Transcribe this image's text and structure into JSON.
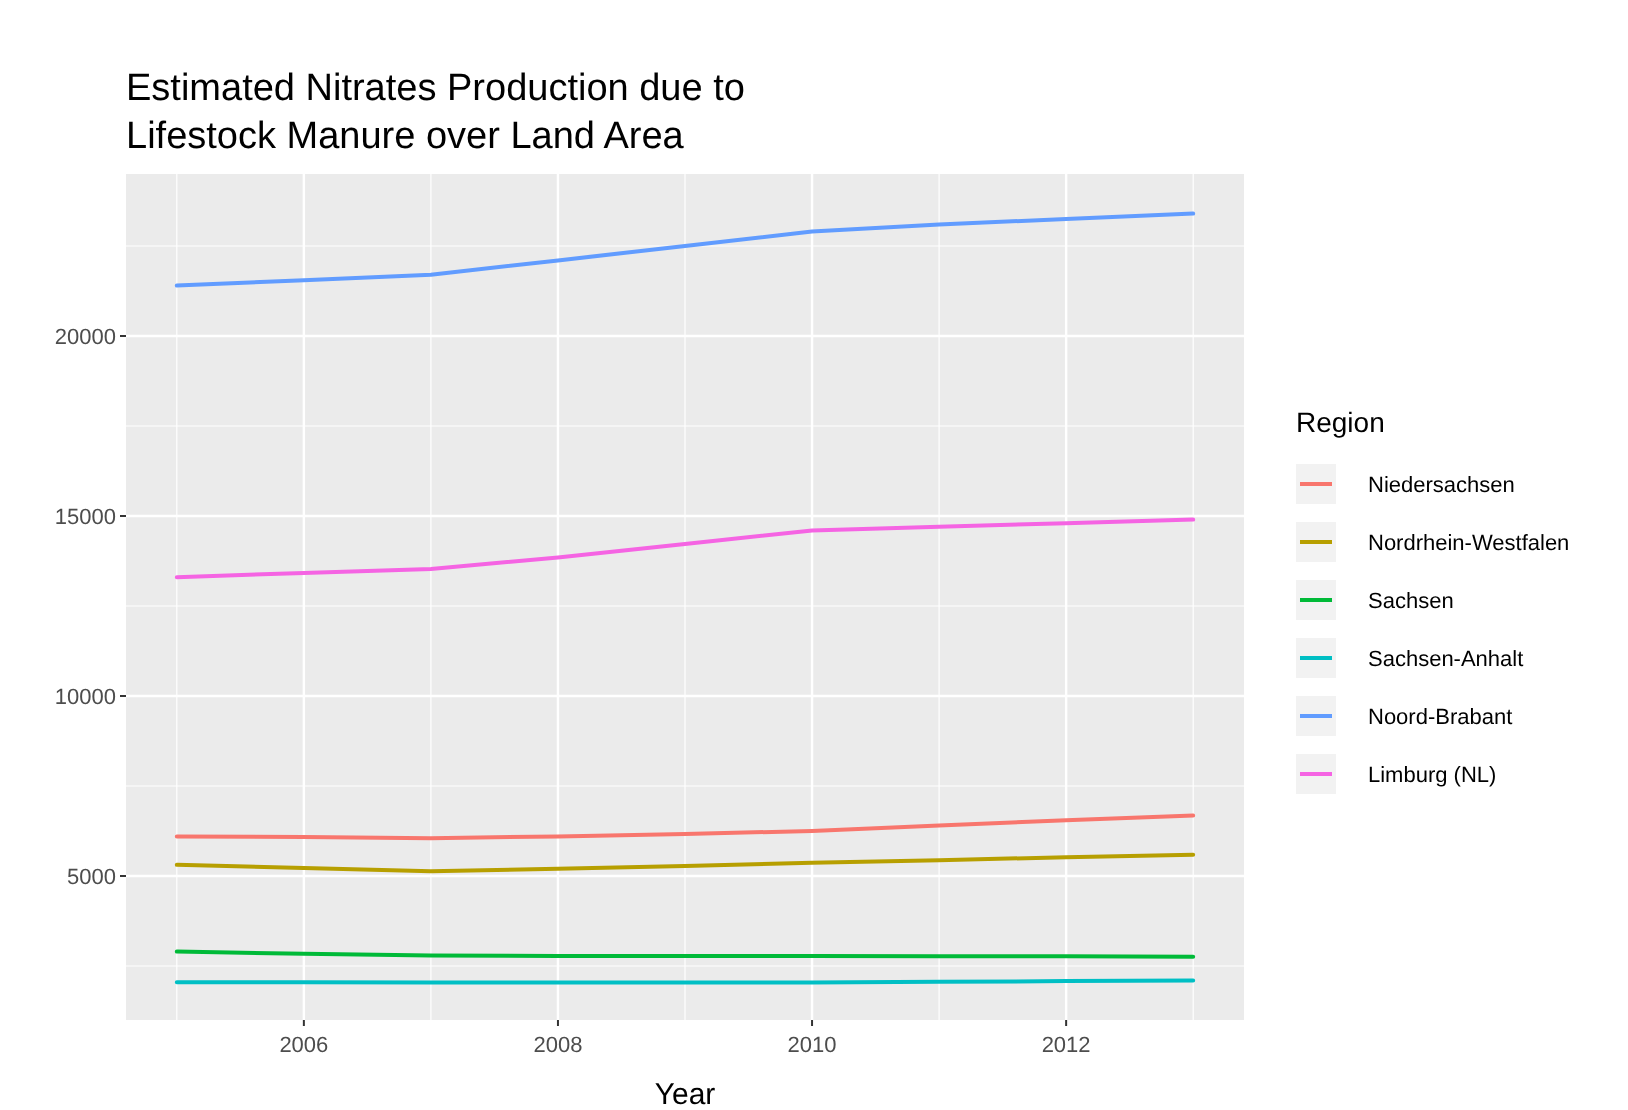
{
  "chart_data": {
    "type": "line",
    "title": "Estimated Nitrates Production due to\nLifestock Manure over Land Area",
    "xlabel": "Year",
    "legend_title": "Region",
    "legend": "right",
    "grid": true,
    "marker": "none",
    "line_style": "solid",
    "x": [
      2005,
      2006,
      2007,
      2008,
      2009,
      2010,
      2011,
      2012,
      2013
    ],
    "xlim": [
      2004.6,
      2013.4
    ],
    "xticks": [
      2006,
      2008,
      2010,
      2012
    ],
    "ylim": [
      1000,
      24500
    ],
    "yticks": [
      5000,
      10000,
      15000,
      20000
    ],
    "series": [
      {
        "name": "Niedersachsen",
        "color": "#f8766d",
        "values": [
          6100,
          6080,
          6050,
          6100,
          6170,
          6250,
          6400,
          6550,
          6680
        ]
      },
      {
        "name": "Nordrhein-Westfalen",
        "color": "#b79f00",
        "values": [
          5310,
          5220,
          5130,
          5200,
          5280,
          5370,
          5440,
          5520,
          5590
        ]
      },
      {
        "name": "Sachsen",
        "color": "#00ba38",
        "values": [
          2900,
          2840,
          2790,
          2780,
          2780,
          2780,
          2770,
          2770,
          2760
        ]
      },
      {
        "name": "Sachsen-Anhalt",
        "color": "#00bfc4",
        "values": [
          2050,
          2050,
          2040,
          2040,
          2040,
          2040,
          2060,
          2080,
          2100
        ]
      },
      {
        "name": "Noord-Brabant",
        "color": "#619cff",
        "values": [
          21400,
          21550,
          21700,
          22100,
          22500,
          22900,
          23100,
          23250,
          23400
        ]
      },
      {
        "name": "Limburg (NL)",
        "color": "#f564e3",
        "values": [
          13300,
          13420,
          13530,
          13850,
          14220,
          14600,
          14700,
          14800,
          14900
        ]
      }
    ]
  }
}
